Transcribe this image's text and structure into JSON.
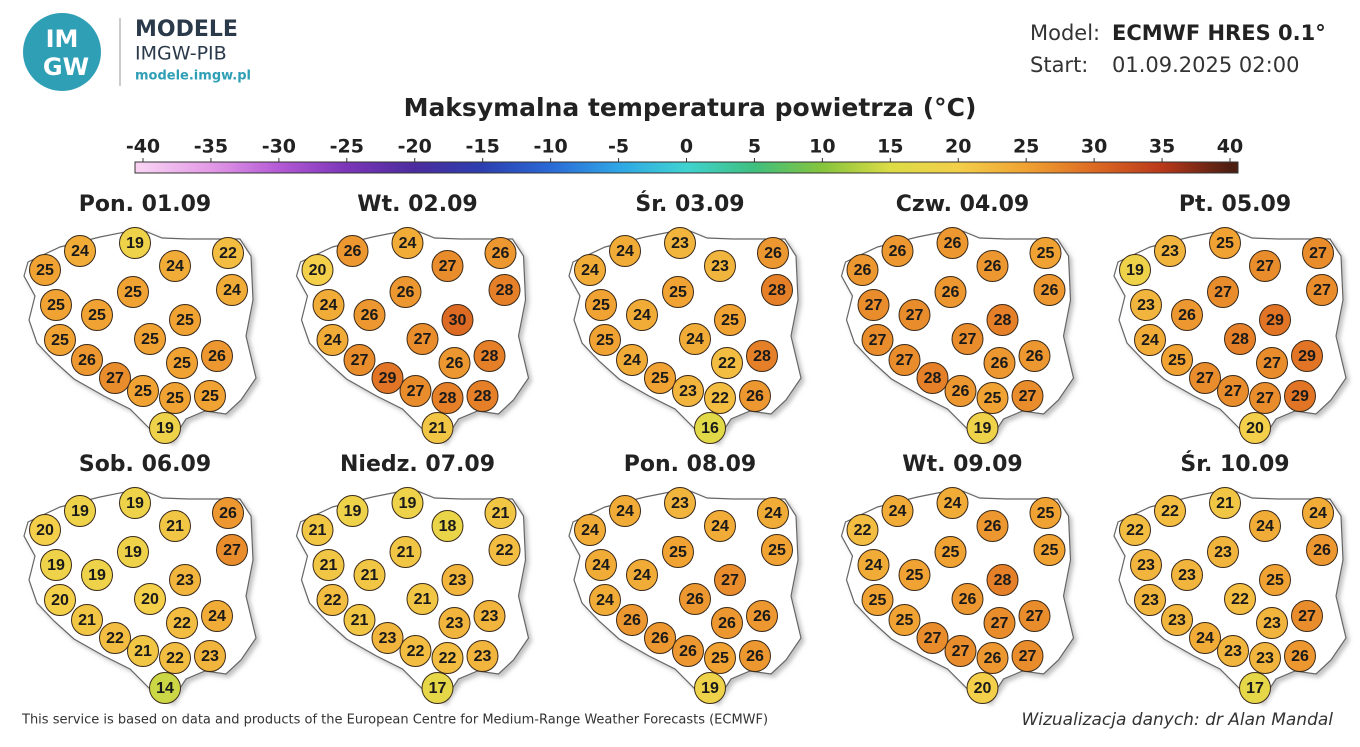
{
  "header": {
    "logo_top": "IM",
    "logo_bottom": "GW",
    "brand": "MODELE",
    "org": "IMGW-PIB",
    "url": "modele.imgw.pl",
    "model_label": "Model:",
    "model": "ECMWF HRES 0.1°",
    "start_label": "Start:",
    "start": "01.09.2025 02:00",
    "title": "Maksymalna temperatura powietrza (°C)"
  },
  "colorbar": {
    "ticks": [
      -40,
      -35,
      -30,
      -25,
      -20,
      -15,
      -10,
      -5,
      0,
      5,
      10,
      15,
      20,
      25,
      30,
      35,
      40
    ],
    "colors": [
      "#f7d0f2",
      "#e39ae6",
      "#b45ad6",
      "#7b35b8",
      "#4b2c9e",
      "#2c3fb0",
      "#2a6ad6",
      "#2fa6e6",
      "#3fd3d0",
      "#3fbf7f",
      "#86c43c",
      "#dcdc46",
      "#f3cf4a",
      "#f0a232",
      "#dd6a22",
      "#b9381a",
      "#4d1f12"
    ]
  },
  "panels": [
    {
      "title": "Pon. 01.09",
      "values": [
        25,
        24,
        19,
        24,
        22,
        24,
        25,
        25,
        25,
        25,
        25,
        25,
        26,
        25,
        26,
        27,
        25,
        25,
        25,
        19
      ]
    },
    {
      "title": "Wt. 02.09",
      "values": [
        20,
        26,
        24,
        27,
        26,
        28,
        24,
        26,
        26,
        30,
        24,
        27,
        28,
        26,
        27,
        29,
        27,
        28,
        28,
        21
      ]
    },
    {
      "title": "Śr. 03.09",
      "values": [
        24,
        24,
        23,
        23,
        26,
        28,
        25,
        24,
        25,
        25,
        25,
        24,
        28,
        22,
        24,
        25,
        23,
        22,
        26,
        16
      ]
    },
    {
      "title": "Czw. 04.09",
      "values": [
        26,
        26,
        26,
        26,
        25,
        26,
        27,
        27,
        26,
        28,
        27,
        27,
        26,
        26,
        27,
        28,
        26,
        25,
        27,
        19
      ]
    },
    {
      "title": "Pt. 05.09",
      "values": [
        19,
        23,
        25,
        27,
        27,
        27,
        23,
        26,
        27,
        29,
        24,
        28,
        29,
        27,
        25,
        27,
        27,
        27,
        29,
        20
      ]
    },
    {
      "title": "Sob. 06.09",
      "values": [
        20,
        19,
        19,
        21,
        26,
        27,
        19,
        19,
        19,
        23,
        20,
        20,
        24,
        22,
        21,
        22,
        21,
        22,
        23,
        14
      ]
    },
    {
      "title": "Niedz. 07.09",
      "values": [
        21,
        19,
        19,
        18,
        21,
        22,
        21,
        21,
        21,
        23,
        22,
        21,
        23,
        23,
        21,
        23,
        22,
        22,
        23,
        17
      ]
    },
    {
      "title": "Pon. 08.09",
      "values": [
        24,
        24,
        23,
        24,
        24,
        25,
        24,
        24,
        25,
        27,
        24,
        26,
        26,
        26,
        26,
        26,
        26,
        25,
        26,
        19
      ]
    },
    {
      "title": "Wt. 09.09",
      "values": [
        22,
        24,
        24,
        26,
        25,
        25,
        24,
        25,
        25,
        28,
        25,
        26,
        27,
        27,
        25,
        27,
        27,
        26,
        27,
        20
      ]
    },
    {
      "title": "Śr. 10.09",
      "values": [
        22,
        22,
        21,
        24,
        24,
        26,
        23,
        23,
        23,
        25,
        23,
        22,
        27,
        23,
        23,
        24,
        23,
        23,
        26,
        17
      ]
    }
  ],
  "footer": {
    "left": "This service is based on data and products of the European Centre for Medium-Range Weather Forecasts (ECMWF)",
    "right": "Wizualizacja danych: dr Alan Mandal"
  }
}
